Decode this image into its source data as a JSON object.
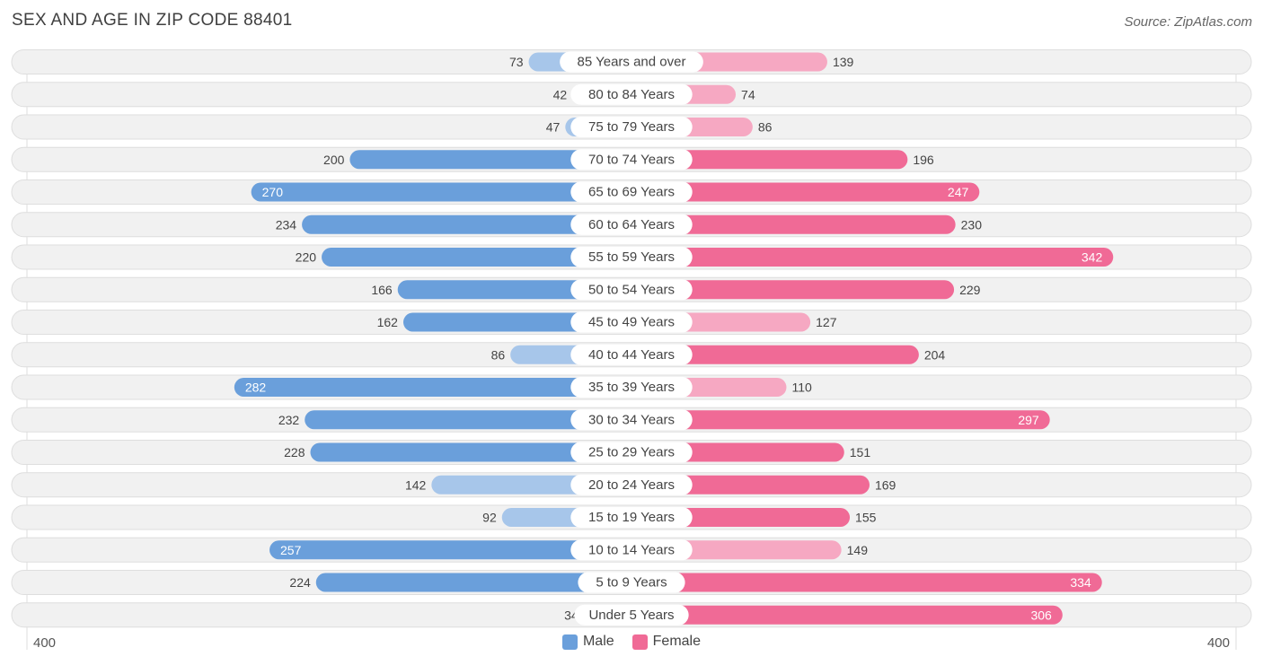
{
  "title": "SEX AND AGE IN ZIP CODE 88401",
  "source": "Source: ZipAtlas.com",
  "colors": {
    "male": "#6a9fdb",
    "male_light": "#a7c6ea",
    "female": "#f06a96",
    "female_light": "#f6a8c2"
  },
  "legend": {
    "male": "Male",
    "female": "Female"
  },
  "axis": {
    "left_label": "400",
    "right_label": "400"
  },
  "chart_data": {
    "type": "bar",
    "orientation": "horizontal-diverging",
    "xlim": [
      -400,
      400
    ],
    "categories": [
      "85 Years and over",
      "80 to 84 Years",
      "75 to 79 Years",
      "70 to 74 Years",
      "65 to 69 Years",
      "60 to 64 Years",
      "55 to 59 Years",
      "50 to 54 Years",
      "45 to 49 Years",
      "40 to 44 Years",
      "35 to 39 Years",
      "30 to 34 Years",
      "25 to 29 Years",
      "20 to 24 Years",
      "15 to 19 Years",
      "10 to 14 Years",
      "5 to 9 Years",
      "Under 5 Years"
    ],
    "series": [
      {
        "name": "Male",
        "values": [
          73,
          42,
          47,
          200,
          270,
          234,
          220,
          166,
          162,
          86,
          282,
          232,
          228,
          142,
          92,
          257,
          224,
          34
        ]
      },
      {
        "name": "Female",
        "values": [
          139,
          74,
          86,
          196,
          247,
          230,
          342,
          229,
          127,
          204,
          110,
          297,
          151,
          169,
          155,
          149,
          334,
          306
        ]
      }
    ],
    "legend_position": "bottom-center"
  }
}
